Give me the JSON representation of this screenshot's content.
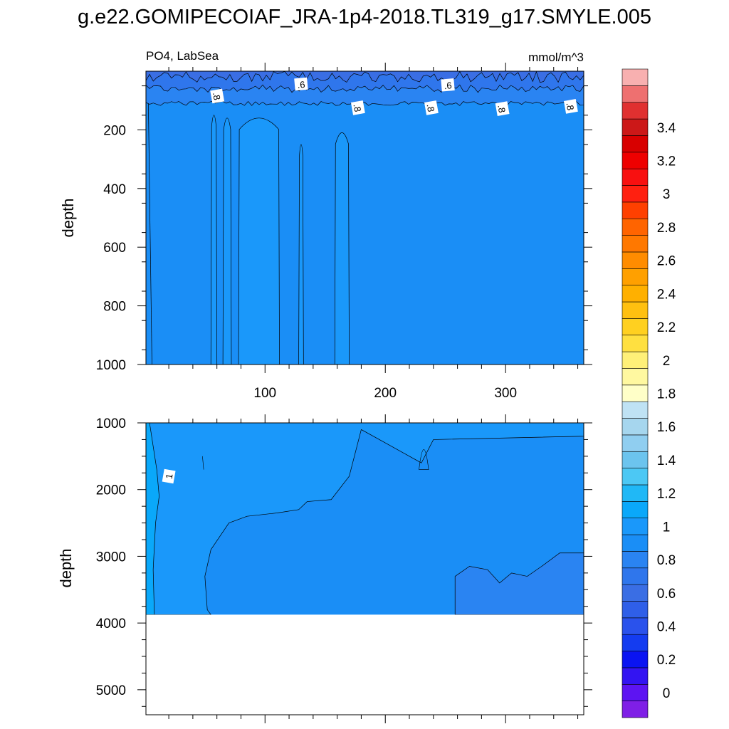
{
  "figure_title": "g.e22.GOMIPECOIAF_JRA-1p4-2018.TL319_g17.SMYLE.005",
  "variable_label": "PO4, LabSea",
  "units_label": "mmol/m^3",
  "chart_data": [
    {
      "type": "heatmap",
      "panel": "upper",
      "title": "PO4, LabSea",
      "units": "mmol/m^3",
      "xlabel": "",
      "ylabel": "depth",
      "xlim": [
        1,
        365
      ],
      "ylim": [
        1000,
        0
      ],
      "x_ticks": [
        100,
        200,
        300
      ],
      "y_ticks": [
        200,
        400,
        600,
        800,
        1000
      ],
      "background_value": 0.85,
      "layers": [
        {
          "name": "surface",
          "value": 0.5,
          "top": 0,
          "bottom": 20
        },
        {
          "name": "near_surface",
          "value": 0.65,
          "top": 20,
          "bottom": 60
        },
        {
          "name": "subsurface",
          "value": 0.75,
          "top": 60,
          "bottom": 110
        }
      ],
      "columns": [
        {
          "x_from": 55,
          "x_to": 60,
          "value": 0.9,
          "top": 140
        },
        {
          "x_from": 65,
          "x_to": 72,
          "value": 0.9,
          "top": 150
        },
        {
          "x_from": 78,
          "x_to": 112,
          "value": 0.9,
          "top": 150
        },
        {
          "x_from": 128,
          "x_to": 132,
          "value": 0.9,
          "top": 240
        },
        {
          "x_from": 158,
          "x_to": 170,
          "value": 0.9,
          "top": 200
        }
      ],
      "contour_labels": [
        {
          "text": ".8",
          "x": 60,
          "y": 85
        },
        {
          "text": ".6",
          "x": 130,
          "y": 45
        },
        {
          "text": ".8",
          "x": 177,
          "y": 125
        },
        {
          "text": ".8",
          "x": 238,
          "y": 125
        },
        {
          "text": ".6",
          "x": 252,
          "y": 48
        },
        {
          "text": ".8",
          "x": 297,
          "y": 128
        },
        {
          "text": ".8",
          "x": 354,
          "y": 120
        }
      ]
    },
    {
      "type": "heatmap",
      "panel": "lower",
      "title": "",
      "xlabel": "",
      "ylabel": "depth",
      "xlim": [
        1,
        365
      ],
      "ylim": [
        5375,
        1000
      ],
      "y_ticks": [
        1000,
        2000,
        3000,
        4000,
        5000
      ],
      "data_bottom": 3875,
      "background_value": 0.85,
      "regions": [
        {
          "name": "western_boundary",
          "value": 1.05,
          "x_from": 1,
          "x_to": 8,
          "top": 1000,
          "bottom": 3875
        },
        {
          "name": "upper_deep",
          "value": 0.9,
          "x_from": 1,
          "x_to": 365,
          "top": 1000,
          "bottom": 2300
        },
        {
          "name": "deep_east",
          "value": 0.75,
          "x_from": 260,
          "x_to": 365,
          "top": 2950,
          "bottom": 3875
        }
      ],
      "contour_labels": [
        {
          "text": "1",
          "x": 20,
          "y": 1800
        }
      ]
    }
  ],
  "colorbar": {
    "labels": [
      "0",
      "0.2",
      "0.4",
      "0.6",
      "0.8",
      "1",
      "1.2",
      "1.4",
      "1.6",
      "1.8",
      "2",
      "2.2",
      "2.4",
      "2.6",
      "2.8",
      "3",
      "3.2",
      "3.4"
    ],
    "levels": [
      -0.1,
      0.0,
      0.1,
      0.2,
      0.3,
      0.4,
      0.5,
      0.6,
      0.7,
      0.8,
      0.9,
      1.0,
      1.1,
      1.2,
      1.3,
      1.4,
      1.5,
      1.6,
      1.7,
      1.8,
      1.9,
      2.0,
      2.1,
      2.2,
      2.3,
      2.4,
      2.5,
      2.6,
      2.7,
      2.8,
      2.9,
      3.0,
      3.1,
      3.2,
      3.3,
      3.4,
      3.5,
      3.6
    ],
    "colors": [
      "#7f1fe6",
      "#5d14f2",
      "#3314f2",
      "#0a14f2",
      "#143cf0",
      "#2a52ec",
      "#2f5fe8",
      "#3a6ee4",
      "#2f76ec",
      "#2a84f2",
      "#1a8ef6",
      "#1a98fa",
      "#0aa8fa",
      "#20b8f6",
      "#4cc8f4",
      "#6cc4ee",
      "#90cef0",
      "#a6d6ee",
      "#bfe2f4",
      "#ffffc8",
      "#fff8a0",
      "#fff078",
      "#ffe040",
      "#ffd020",
      "#ffc010",
      "#ffb000",
      "#ffa000",
      "#ff8c00",
      "#ff7800",
      "#ff6400",
      "#ff4000",
      "#ff2010",
      "#f81010",
      "#ee0000",
      "#d80000",
      "#cc1818",
      "#e03030",
      "#ee7070",
      "#f8b0b0"
    ]
  }
}
